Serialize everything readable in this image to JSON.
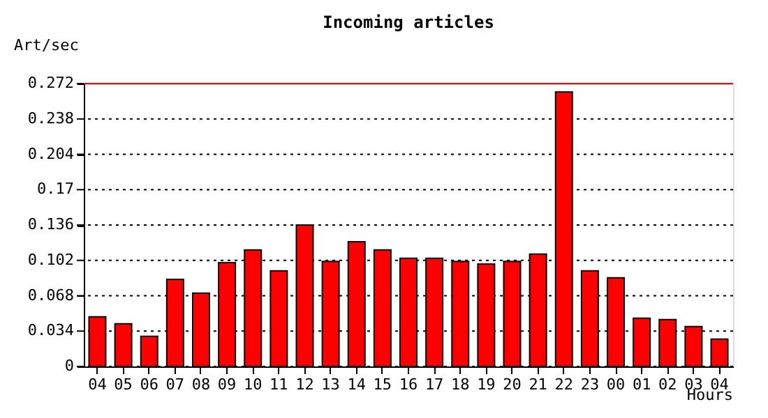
{
  "chart_data": {
    "type": "bar",
    "title": "Incoming articles",
    "ylabel": "Art/sec",
    "xlabel": "Hours",
    "categories": [
      "04",
      "05",
      "06",
      "07",
      "08",
      "09",
      "10",
      "11",
      "12",
      "13",
      "14",
      "15",
      "16",
      "17",
      "18",
      "19",
      "20",
      "21",
      "22",
      "23",
      "00",
      "01",
      "02",
      "03",
      "04"
    ],
    "series": [
      {
        "color": "#ff0000",
        "values": [
          0.0477,
          0.041,
          0.029,
          0.0838,
          0.0705,
          0.0999,
          0.112,
          0.0919,
          0.136,
          0.101,
          0.12,
          0.112,
          0.104,
          0.104,
          0.101,
          0.0985,
          0.101,
          0.108,
          0.264,
          0.0919,
          0.0852,
          0.0464,
          0.045,
          0.0383,
          0.0263
        ]
      }
    ],
    "ylim": [
      0,
      0.272
    ],
    "yticks": [
      0,
      0.034,
      0.068,
      0.102,
      0.136,
      0.17,
      0.204,
      0.238,
      0.272
    ],
    "grid": "y",
    "ref_lines": [
      {
        "axis": "y",
        "value": 0.272,
        "color": "#ff0000"
      }
    ]
  }
}
